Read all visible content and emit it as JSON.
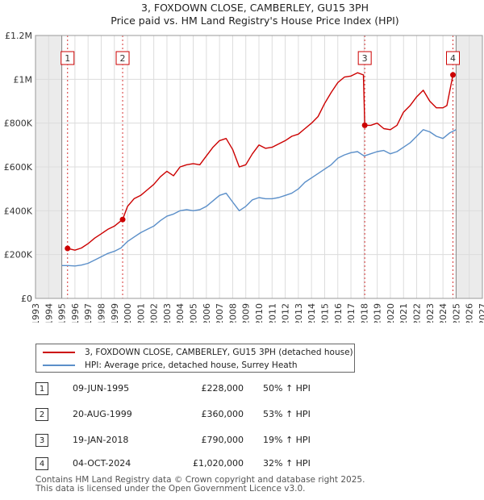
{
  "chart_data": {
    "type": "line",
    "title": "3, FOXDOWN CLOSE, CAMBERLEY, GU15 3PH",
    "subtitle": "Price paid vs. HM Land Registry's House Price Index (HPI)",
    "xlim": [
      1993,
      2027
    ],
    "ylim": [
      0,
      1200000
    ],
    "x_ticks": [
      "1993",
      "1994",
      "1995",
      "1996",
      "1997",
      "1998",
      "1999",
      "2000",
      "2001",
      "2002",
      "2003",
      "2004",
      "2005",
      "2006",
      "2007",
      "2008",
      "2009",
      "2010",
      "2011",
      "2012",
      "2013",
      "2014",
      "2015",
      "2016",
      "2017",
      "2018",
      "2019",
      "2020",
      "2021",
      "2022",
      "2023",
      "2024",
      "2025",
      "2026",
      "2027"
    ],
    "y_ticks": [
      {
        "value": 0,
        "label": "£0"
      },
      {
        "value": 200000,
        "label": "£200K"
      },
      {
        "value": 400000,
        "label": "£400K"
      },
      {
        "value": 600000,
        "label": "£600K"
      },
      {
        "value": 800000,
        "label": "£800K"
      },
      {
        "value": 1000000,
        "label": "£1M"
      },
      {
        "value": 1200000,
        "label": "£1.2M"
      }
    ],
    "shaded_before": 1995.0,
    "shaded_after": 2025.0,
    "series": [
      {
        "name": "3, FOXDOWN CLOSE, CAMBERLEY, GU15 3PH (detached house)",
        "color": "#cc0000",
        "x": [
          1995.44,
          1996.0,
          1996.5,
          1997.0,
          1997.5,
          1998.0,
          1998.5,
          1999.0,
          1999.63,
          2000.0,
          2000.5,
          2001.0,
          2001.5,
          2002.0,
          2002.5,
          2003.0,
          2003.5,
          2004.0,
          2004.5,
          2005.0,
          2005.5,
          2006.0,
          2006.5,
          2007.0,
          2007.5,
          2008.0,
          2008.5,
          2009.0,
          2009.5,
          2010.0,
          2010.5,
          2011.0,
          2011.5,
          2012.0,
          2012.5,
          2013.0,
          2013.5,
          2014.0,
          2014.5,
          2015.0,
          2015.5,
          2016.0,
          2016.5,
          2017.0,
          2017.5,
          2017.95,
          2018.05,
          2018.5,
          2019.0,
          2019.5,
          2020.0,
          2020.5,
          2021.0,
          2021.5,
          2022.0,
          2022.5,
          2023.0,
          2023.5,
          2024.0,
          2024.3,
          2024.76,
          2024.9
        ],
        "values": [
          228000,
          220000,
          230000,
          250000,
          275000,
          295000,
          315000,
          330000,
          360000,
          420000,
          455000,
          470000,
          495000,
          520000,
          555000,
          580000,
          560000,
          600000,
          610000,
          615000,
          610000,
          650000,
          690000,
          720000,
          730000,
          680000,
          600000,
          610000,
          660000,
          700000,
          685000,
          690000,
          705000,
          720000,
          740000,
          750000,
          775000,
          800000,
          830000,
          890000,
          940000,
          985000,
          1010000,
          1015000,
          1030000,
          1020000,
          790000,
          790000,
          800000,
          775000,
          770000,
          790000,
          850000,
          880000,
          920000,
          950000,
          900000,
          870000,
          870000,
          880000,
          1020000,
          1025000
        ]
      },
      {
        "name": "HPI: Average price, detached house, Surrey Heath",
        "color": "#5b8fc9",
        "x": [
          1995.0,
          1995.5,
          1996.0,
          1996.5,
          1997.0,
          1997.5,
          1998.0,
          1998.5,
          1999.0,
          1999.5,
          2000.0,
          2000.5,
          2001.0,
          2001.5,
          2002.0,
          2002.5,
          2003.0,
          2003.5,
          2004.0,
          2004.5,
          2005.0,
          2005.5,
          2006.0,
          2006.5,
          2007.0,
          2007.5,
          2008.0,
          2008.5,
          2009.0,
          2009.5,
          2010.0,
          2010.5,
          2011.0,
          2011.5,
          2012.0,
          2012.5,
          2013.0,
          2013.5,
          2014.0,
          2014.5,
          2015.0,
          2015.5,
          2016.0,
          2016.5,
          2017.0,
          2017.5,
          2018.0,
          2018.5,
          2019.0,
          2019.5,
          2020.0,
          2020.5,
          2021.0,
          2021.5,
          2022.0,
          2022.5,
          2023.0,
          2023.5,
          2024.0,
          2024.5,
          2025.0
        ],
        "values": [
          150000,
          150000,
          148000,
          152000,
          160000,
          175000,
          190000,
          205000,
          215000,
          230000,
          260000,
          280000,
          300000,
          315000,
          330000,
          355000,
          375000,
          385000,
          400000,
          405000,
          400000,
          405000,
          420000,
          445000,
          470000,
          480000,
          440000,
          400000,
          420000,
          450000,
          460000,
          455000,
          455000,
          460000,
          470000,
          480000,
          500000,
          530000,
          550000,
          570000,
          590000,
          610000,
          640000,
          655000,
          665000,
          670000,
          650000,
          660000,
          670000,
          675000,
          660000,
          670000,
          690000,
          710000,
          740000,
          770000,
          760000,
          740000,
          730000,
          755000,
          770000
        ]
      }
    ],
    "sales": [
      {
        "label": "1",
        "x": 1995.44,
        "value": 228000
      },
      {
        "label": "2",
        "x": 1999.63,
        "value": 360000
      },
      {
        "label": "3",
        "x": 2018.05,
        "value": 790000
      },
      {
        "label": "4",
        "x": 2024.76,
        "value": 1020000
      }
    ]
  },
  "legend": {
    "property_label": "3, FOXDOWN CLOSE, CAMBERLEY, GU15 3PH (detached house)",
    "hpi_label": "HPI: Average price, detached house, Surrey Heath"
  },
  "transactions": [
    {
      "id": "1",
      "date": "09-JUN-1995",
      "price": "£228,000",
      "hpi": "50% ↑ HPI"
    },
    {
      "id": "2",
      "date": "20-AUG-1999",
      "price": "£360,000",
      "hpi": "53% ↑ HPI"
    },
    {
      "id": "3",
      "date": "19-JAN-2018",
      "price": "£790,000",
      "hpi": "19% ↑ HPI"
    },
    {
      "id": "4",
      "date": "04-OCT-2024",
      "price": "£1,020,000",
      "hpi": "32% ↑ HPI"
    }
  ],
  "footer": {
    "line1": "Contains HM Land Registry data © Crown copyright and database right 2025.",
    "line2": "This data is licensed under the Open Government Licence v3.0."
  }
}
